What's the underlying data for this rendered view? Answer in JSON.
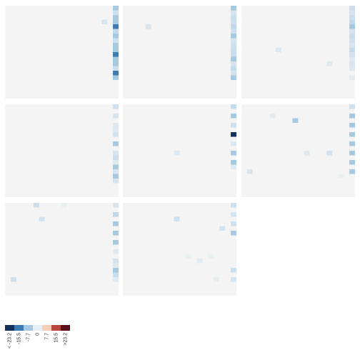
{
  "chart_data": {
    "type": "heatmap",
    "grid_layout": "3x3 small multiples, 8 panels",
    "panel_background": "#f4f4f4",
    "cells_per_side": 20,
    "color_scale": {
      "colors": [
        "#13305a",
        "#3d7ab1",
        "#a4c9e1",
        "#e8eef3",
        "#f9cfb6",
        "#b8463c",
        "#5a0d1a"
      ],
      "breaks": [
        -23.2,
        -15.5,
        -7.7,
        0,
        7.7,
        15.5,
        23.2
      ],
      "break_labels": [
        "< -23.2",
        "-15.5",
        "-7.7",
        "0",
        "7.7",
        "15.5",
        ">23.2"
      ]
    },
    "panels": [
      {
        "cells": [
          {
            "row": 0,
            "col": 19,
            "value": -8.5
          },
          {
            "row": 1,
            "col": 19,
            "value": -5.5
          },
          {
            "row": 2,
            "col": 19,
            "value": -13.5
          },
          {
            "row": 3,
            "col": 17,
            "value": -4.5
          },
          {
            "row": 3,
            "col": 19,
            "value": -11.0
          },
          {
            "row": 4,
            "col": 19,
            "value": -16.0
          },
          {
            "row": 5,
            "col": 19,
            "value": -7.5
          },
          {
            "row": 6,
            "col": 19,
            "value": -13.0
          },
          {
            "row": 7,
            "col": 19,
            "value": -5.5
          },
          {
            "row": 8,
            "col": 19,
            "value": -11.5
          },
          {
            "row": 9,
            "col": 19,
            "value": -8.5
          },
          {
            "row": 10,
            "col": 19,
            "value": -18.0
          },
          {
            "row": 11,
            "col": 19,
            "value": -11.0
          },
          {
            "row": 12,
            "col": 19,
            "value": -8.5
          },
          {
            "row": 13,
            "col": 19,
            "value": -6.0
          },
          {
            "row": 14,
            "col": 19,
            "value": -21.0
          },
          {
            "row": 15,
            "col": 19,
            "value": -12.5
          }
        ]
      },
      {
        "cells": [
          {
            "row": 0,
            "col": 19,
            "value": -13.5
          },
          {
            "row": 1,
            "col": 19,
            "value": -4.5
          },
          {
            "row": 2,
            "col": 19,
            "value": -6.0
          },
          {
            "row": 3,
            "col": 19,
            "value": -5.5
          },
          {
            "row": 4,
            "col": 4,
            "value": -4.0
          },
          {
            "row": 4,
            "col": 19,
            "value": -7.5
          },
          {
            "row": 5,
            "col": 19,
            "value": -5.5
          },
          {
            "row": 6,
            "col": 19,
            "value": -8.5
          },
          {
            "row": 7,
            "col": 19,
            "value": -4.5
          },
          {
            "row": 8,
            "col": 19,
            "value": -5.5
          },
          {
            "row": 9,
            "col": 19,
            "value": -6.0
          },
          {
            "row": 10,
            "col": 19,
            "value": -6.5
          },
          {
            "row": 11,
            "col": 19,
            "value": -8.0
          },
          {
            "row": 12,
            "col": 19,
            "value": -4.5
          },
          {
            "row": 13,
            "col": 19,
            "value": -7.0
          },
          {
            "row": 14,
            "col": 19,
            "value": -5.0
          },
          {
            "row": 15,
            "col": 19,
            "value": -12.0
          }
        ]
      },
      {
        "cells": [
          {
            "row": 0,
            "col": 19,
            "value": -6.0
          },
          {
            "row": 1,
            "col": 19,
            "value": -4.5
          },
          {
            "row": 2,
            "col": 19,
            "value": -6.0
          },
          {
            "row": 3,
            "col": 19,
            "value": -7.5
          },
          {
            "row": 4,
            "col": 19,
            "value": -9.0
          },
          {
            "row": 5,
            "col": 19,
            "value": -5.0
          },
          {
            "row": 6,
            "col": 19,
            "value": -6.5
          },
          {
            "row": 7,
            "col": 19,
            "value": -5.5
          },
          {
            "row": 8,
            "col": 19,
            "value": -4.0
          },
          {
            "row": 9,
            "col": 6,
            "value": -3.5
          },
          {
            "row": 9,
            "col": 19,
            "value": -7.0
          },
          {
            "row": 10,
            "col": 19,
            "value": -5.0
          },
          {
            "row": 11,
            "col": 19,
            "value": -3.5
          },
          {
            "row": 12,
            "col": 15,
            "value": -3.0
          },
          {
            "row": 12,
            "col": 19,
            "value": -4.0
          },
          {
            "row": 13,
            "col": 19,
            "value": -3.5
          },
          {
            "row": 15,
            "col": 19,
            "value": -2.5
          }
        ]
      },
      {
        "cells": [
          {
            "row": 0,
            "col": 19,
            "value": -5.5
          },
          {
            "row": 2,
            "col": 19,
            "value": -4.0
          },
          {
            "row": 4,
            "col": 19,
            "value": -3.5
          },
          {
            "row": 5,
            "col": 19,
            "value": -3.0
          },
          {
            "row": 6,
            "col": 19,
            "value": -5.0
          },
          {
            "row": 8,
            "col": 19,
            "value": -9.0
          },
          {
            "row": 10,
            "col": 19,
            "value": -4.5
          },
          {
            "row": 11,
            "col": 19,
            "value": -6.0
          },
          {
            "row": 12,
            "col": 19,
            "value": -3.0
          },
          {
            "row": 13,
            "col": 19,
            "value": -8.5
          },
          {
            "row": 14,
            "col": 19,
            "value": -4.5
          },
          {
            "row": 15,
            "col": 19,
            "value": -9.0
          },
          {
            "row": 16,
            "col": 19,
            "value": -4.0
          }
        ]
      },
      {
        "cells": [
          {
            "row": 0,
            "col": 19,
            "value": -7.0
          },
          {
            "row": 2,
            "col": 19,
            "value": -10.5
          },
          {
            "row": 4,
            "col": 19,
            "value": -5.5
          },
          {
            "row": 6,
            "col": 19,
            "value": -24.5
          },
          {
            "row": 8,
            "col": 19,
            "value": -3.5
          },
          {
            "row": 10,
            "col": 9,
            "value": -3.0
          },
          {
            "row": 10,
            "col": 19,
            "value": -13.0
          },
          {
            "row": 12,
            "col": 19,
            "value": -12.5
          },
          {
            "row": 13,
            "col": 19,
            "value": -3.0
          }
        ]
      },
      {
        "cells": [
          {
            "row": 0,
            "col": 19,
            "value": -5.5
          },
          {
            "row": 2,
            "col": 5,
            "value": -2.5
          },
          {
            "row": 2,
            "col": 19,
            "value": -13.0
          },
          {
            "row": 3,
            "col": 9,
            "value": -9.5
          },
          {
            "row": 4,
            "col": 19,
            "value": -15.0
          },
          {
            "row": 6,
            "col": 19,
            "value": -11.5
          },
          {
            "row": 8,
            "col": 19,
            "value": -13.5
          },
          {
            "row": 10,
            "col": 11,
            "value": -3.0
          },
          {
            "row": 10,
            "col": 15,
            "value": -5.0
          },
          {
            "row": 10,
            "col": 19,
            "value": -11.0
          },
          {
            "row": 12,
            "col": 19,
            "value": -13.0
          },
          {
            "row": 14,
            "col": 1,
            "value": -4.0
          },
          {
            "row": 14,
            "col": 19,
            "value": -10.0
          },
          {
            "row": 15,
            "col": 17,
            "value": -1.5
          }
        ]
      },
      {
        "cells": [
          {
            "row": 0,
            "col": 5,
            "value": -6.0
          },
          {
            "row": 0,
            "col": 10,
            "value": -1.5
          },
          {
            "row": 0,
            "col": 19,
            "value": -4.0
          },
          {
            "row": 2,
            "col": 19,
            "value": -7.5
          },
          {
            "row": 3,
            "col": 6,
            "value": -5.0
          },
          {
            "row": 4,
            "col": 19,
            "value": -13.0
          },
          {
            "row": 6,
            "col": 19,
            "value": -9.5
          },
          {
            "row": 8,
            "col": 19,
            "value": -8.5
          },
          {
            "row": 10,
            "col": 19,
            "value": -3.0
          },
          {
            "row": 12,
            "col": 19,
            "value": -5.0
          },
          {
            "row": 13,
            "col": 19,
            "value": -3.0
          },
          {
            "row": 14,
            "col": 19,
            "value": -12.0
          },
          {
            "row": 15,
            "col": 19,
            "value": -6.5
          },
          {
            "row": 16,
            "col": 1,
            "value": -5.5
          },
          {
            "row": 16,
            "col": 19,
            "value": -3.0
          }
        ]
      },
      {
        "cells": [
          {
            "row": 0,
            "col": 19,
            "value": -5.5
          },
          {
            "row": 2,
            "col": 19,
            "value": -4.5
          },
          {
            "row": 3,
            "col": 9,
            "value": -5.5
          },
          {
            "row": 4,
            "col": 19,
            "value": -5.5
          },
          {
            "row": 5,
            "col": 17,
            "value": -4.5
          },
          {
            "row": 6,
            "col": 19,
            "value": -11.0
          },
          {
            "row": 11,
            "col": 11,
            "value": -1.5
          },
          {
            "row": 11,
            "col": 15,
            "value": -1.5
          },
          {
            "row": 12,
            "col": 13,
            "value": -2.5
          },
          {
            "row": 14,
            "col": 19,
            "value": -6.0
          },
          {
            "row": 16,
            "col": 16,
            "value": -2.0
          },
          {
            "row": 16,
            "col": 19,
            "value": -4.5
          }
        ]
      }
    ]
  }
}
